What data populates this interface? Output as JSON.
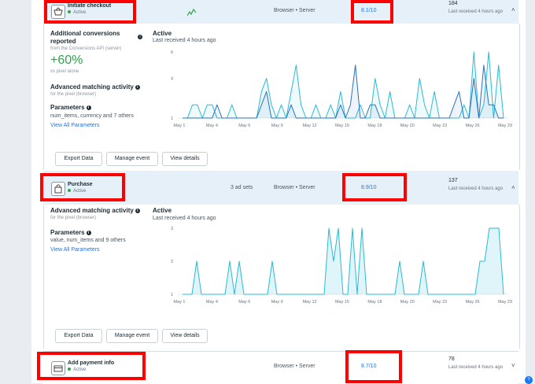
{
  "events": [
    {
      "name": "Initiate checkout",
      "status": "Active",
      "ad_sets": "",
      "source": "Browser • Server",
      "score": "8.1/10",
      "count": "184",
      "received": "Last received 4 hours ago",
      "chevron": "˄",
      "icon": "basket-icon"
    },
    {
      "name": "Purchase",
      "status": "Active",
      "ad_sets": "3 ad sets",
      "source": "Browser • Server",
      "score": "8.9/10",
      "count": "137",
      "received": "Last received 4 hours ago",
      "chevron": "˄",
      "icon": "bag-icon"
    },
    {
      "name": "Add payment info",
      "status": "Active",
      "ad_sets": "",
      "source": "Browser • Server",
      "score": "8.7/10",
      "count": "78",
      "received": "Last received 4 hours ago",
      "chevron": "˅",
      "icon": "card-icon"
    }
  ],
  "panel1": {
    "conv_title": "Additional conversions reported",
    "conv_sub": "from the Conversions API (server)",
    "conv_value": "+60%",
    "conv_note": "vs pixel alone",
    "amc_title": "Advanced matching activity",
    "amc_sub": "for the pixel (browser)",
    "params_title": "Parameters",
    "params_text": "num_items, currency and 7 others",
    "view_all": "View All Parameters",
    "activity_title": "Active",
    "activity_sub": "Last received 4 hours ago",
    "buttons": [
      "Export Data",
      "Manage event",
      "View details"
    ]
  },
  "panel2": {
    "amc_title": "Advanced matching activity",
    "amc_sub": "for the pixel (browser)",
    "params_title": "Parameters",
    "params_text": "value, num_items and 9 others",
    "view_all": "View All Parameters",
    "activity_title": "Active",
    "activity_sub": "Last received 4 hours ago",
    "buttons": [
      "Export Data",
      "Manage event",
      "View details"
    ]
  },
  "chart_data": [
    {
      "type": "line",
      "x_tick_labels": [
        "May 1",
        "May 4",
        "May 6",
        "May 9",
        "May 12",
        "May 15",
        "May 18",
        "May 20",
        "May 23",
        "May 26",
        "May 29"
      ],
      "y_ticks": [
        1,
        4,
        6
      ],
      "ylim": [
        1,
        6
      ],
      "series_colors": [
        "#2bbbd6",
        "#2c6fc2"
      ],
      "series": [
        {
          "values": [
            1,
            1,
            2,
            2,
            1,
            2,
            2,
            1,
            1,
            1,
            2,
            1,
            1,
            1,
            1,
            1,
            3,
            4,
            2,
            1,
            2,
            1,
            3,
            5,
            2,
            1,
            1,
            2,
            1,
            1,
            2,
            1,
            3,
            1,
            1,
            1,
            2,
            1,
            1,
            4,
            2,
            1,
            3,
            1,
            1,
            1,
            2,
            1,
            4,
            2,
            1,
            3,
            1,
            1,
            1,
            1,
            1,
            2,
            1,
            6,
            1,
            2,
            6,
            1,
            5,
            1
          ]
        },
        {
          "values": [
            1,
            1,
            1,
            1,
            1,
            1,
            1,
            2,
            1,
            1,
            1,
            1,
            1,
            1,
            1,
            1,
            2,
            3,
            1,
            1,
            1,
            1,
            2,
            1,
            1,
            1,
            1,
            1,
            1,
            1,
            1,
            1,
            2,
            1,
            2,
            5,
            1,
            1,
            2,
            2,
            1,
            1,
            1,
            1,
            1,
            1,
            1,
            1,
            1,
            1,
            1,
            1,
            1,
            1,
            1,
            2,
            3,
            1,
            1,
            4,
            1,
            5,
            2,
            2,
            1,
            1
          ]
        }
      ]
    },
    {
      "type": "area",
      "x_tick_labels": [
        "May 1",
        "May 4",
        "May 6",
        "May 9",
        "May 12",
        "May 15",
        "May 18",
        "May 20",
        "May 23",
        "May 26",
        "May 29"
      ],
      "y_ticks": [
        1,
        2,
        3
      ],
      "ylim": [
        1,
        3
      ],
      "series_colors": [
        "#2bbbd6"
      ],
      "series": [
        {
          "values": [
            1,
            1,
            1,
            2,
            1,
            1,
            1,
            1,
            1,
            1,
            2,
            1,
            2,
            1,
            1,
            1,
            1,
            1,
            1,
            2,
            1,
            1,
            1,
            1,
            1,
            1,
            1,
            1,
            1,
            1,
            1,
            3,
            2,
            3,
            1,
            1,
            3,
            1,
            3,
            1,
            1,
            1,
            1,
            1,
            1,
            1,
            2,
            1,
            1,
            1,
            1,
            2,
            1,
            1,
            1,
            1,
            1,
            1,
            1,
            1,
            1,
            1,
            1,
            2,
            2,
            3,
            3,
            3,
            1
          ]
        }
      ]
    }
  ]
}
